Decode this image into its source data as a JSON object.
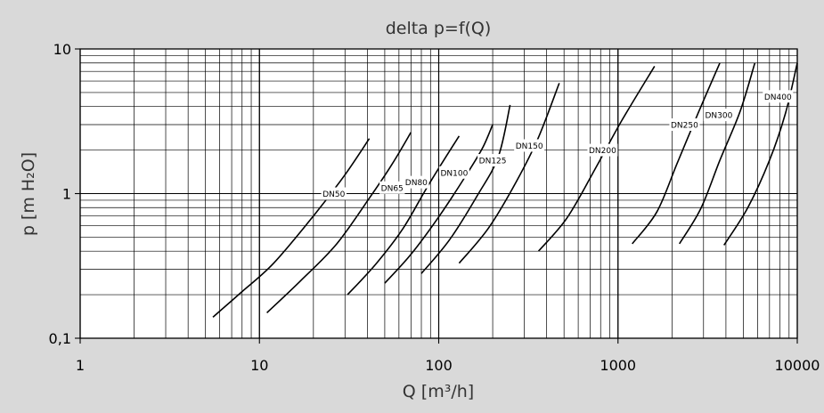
{
  "chart_data": {
    "type": "line",
    "title": "delta p=f(Q)",
    "xlabel": "Q [m³/h]",
    "ylabel": "p [m H₂O]",
    "xscale": "log",
    "yscale": "log",
    "xlim": [
      1,
      10000
    ],
    "ylim": [
      0.1,
      10
    ],
    "grid": true,
    "x_tick_labels": [
      {
        "value": 1,
        "label": "1"
      },
      {
        "value": 10,
        "label": "10"
      },
      {
        "value": 100,
        "label": "100"
      },
      {
        "value": 1000,
        "label": "1000"
      },
      {
        "value": 10000,
        "label": "10000"
      }
    ],
    "y_tick_labels": [
      {
        "value": 0.1,
        "label": "0,1"
      },
      {
        "value": 1,
        "label": "1"
      },
      {
        "value": 10,
        "label": "10"
      }
    ],
    "series": [
      {
        "name": "DN50",
        "x": [
          5.5,
          8,
          12,
          20,
          30,
          41
        ],
        "y": [
          0.14,
          0.21,
          0.33,
          0.7,
          1.35,
          2.4
        ],
        "label_at": [
          26,
          1.0
        ]
      },
      {
        "name": "DN65",
        "x": [
          11,
          17,
          27,
          42,
          55,
          70
        ],
        "y": [
          0.15,
          0.25,
          0.45,
          0.97,
          1.6,
          2.65
        ],
        "label_at": [
          55,
          1.1
        ]
      },
      {
        "name": "DN80",
        "x": [
          31,
          45,
          63,
          84,
          105,
          130
        ],
        "y": [
          0.2,
          0.33,
          0.57,
          1.05,
          1.65,
          2.5
        ],
        "label_at": [
          75,
          1.2
        ]
      },
      {
        "name": "DN100",
        "x": [
          50,
          70,
          100,
          140,
          175,
          200
        ],
        "y": [
          0.24,
          0.38,
          0.69,
          1.3,
          2.05,
          3.0
        ],
        "label_at": [
          122,
          1.4
        ]
      },
      {
        "name": "DN125",
        "x": [
          80,
          115,
          165,
          215,
          250
        ],
        "y": [
          0.28,
          0.48,
          0.98,
          1.8,
          4.1
        ],
        "label_at": [
          200,
          1.7
        ]
      },
      {
        "name": "DN150",
        "x": [
          130,
          190,
          270,
          360,
          470
        ],
        "y": [
          0.33,
          0.58,
          1.2,
          2.45,
          5.8
        ],
        "label_at": [
          320,
          2.15
        ]
      },
      {
        "name": "DN200",
        "x": [
          360,
          520,
          750,
          1050,
          1600
        ],
        "y": [
          0.4,
          0.68,
          1.5,
          3.2,
          7.6
        ],
        "label_at": [
          820,
          2.0
        ]
      },
      {
        "name": "DN250",
        "x": [
          1200,
          1650,
          2150,
          2800,
          3700
        ],
        "y": [
          0.45,
          0.75,
          1.65,
          3.6,
          8.0
        ],
        "label_at": [
          2350,
          3.0
        ]
      },
      {
        "name": "DN300",
        "x": [
          2200,
          2900,
          3700,
          4800,
          5800
        ],
        "y": [
          0.45,
          0.79,
          1.7,
          3.7,
          8.0
        ],
        "label_at": [
          3650,
          3.5
        ]
      },
      {
        "name": "DN400",
        "x": [
          3900,
          5300,
          7000,
          8600,
          10000
        ],
        "y": [
          0.44,
          0.8,
          1.7,
          3.6,
          8.0
        ],
        "label_at": [
          7800,
          4.7
        ]
      }
    ]
  }
}
